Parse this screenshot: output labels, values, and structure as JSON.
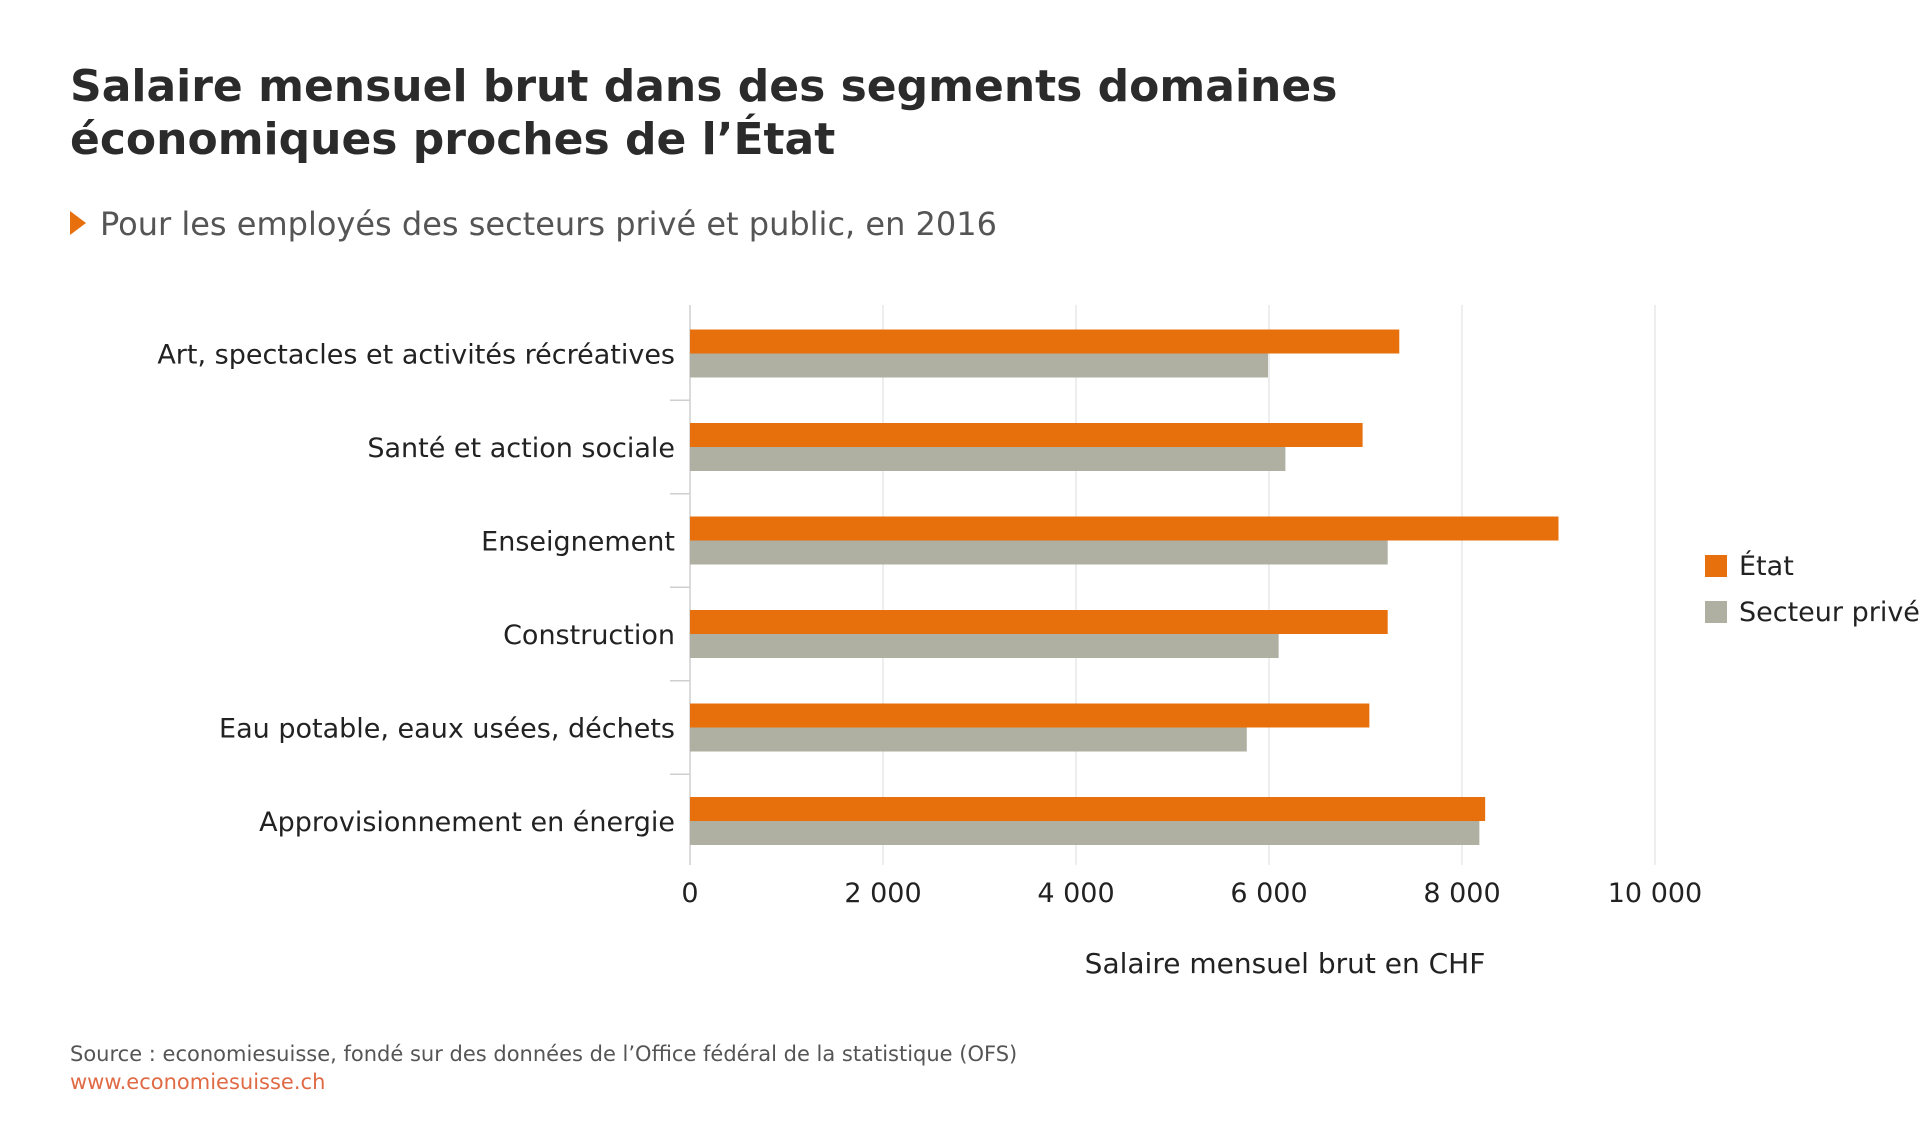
{
  "header": {
    "title_line1": "Salaire mensuel brut dans des segments domaines",
    "title_line2": "économiques proches de l’État",
    "subtitle": "Pour les employés des secteurs privé et public, en 2016"
  },
  "footer": {
    "source": "Source : economiesuisse, fondé sur des données de l’Office fédéral de la statistique (OFS)",
    "url": "www.economiesuisse.ch"
  },
  "colors": {
    "etat": "#e8700c",
    "prive": "#b0b0a2",
    "grid": "#e3e3e3",
    "axis": "#cfcfcf",
    "url": "#e06a45"
  },
  "chart_data": {
    "type": "bar",
    "orientation": "horizontal",
    "title": "Salaire mensuel brut dans des segments domaines économiques proches de l’État",
    "subtitle": "Pour les employés des secteurs privé et public, en 2016",
    "categories": [
      "Art, spectacles et activités récréatives",
      "Santé et action sociale",
      "Enseignement",
      "Construction",
      "Eau potable, eaux usées, déchets",
      "Approvisionnement en énergie"
    ],
    "series": [
      {
        "name": "État",
        "values": [
          7350,
          6970,
          9000,
          7230,
          7040,
          8240
        ]
      },
      {
        "name": "Secteur privé",
        "values": [
          5990,
          6170,
          7230,
          6100,
          5770,
          8180
        ]
      }
    ],
    "xlabel": "Salaire mensuel brut en CHF",
    "ylabel": "",
    "xlim": [
      0,
      10000
    ],
    "xticks": [
      0,
      2000,
      4000,
      6000,
      8000,
      10000
    ],
    "xtick_labels": [
      "0",
      "2 000",
      "4 000",
      "6 000",
      "8 000",
      "10 000"
    ],
    "grid": true,
    "legend_position": "right"
  }
}
